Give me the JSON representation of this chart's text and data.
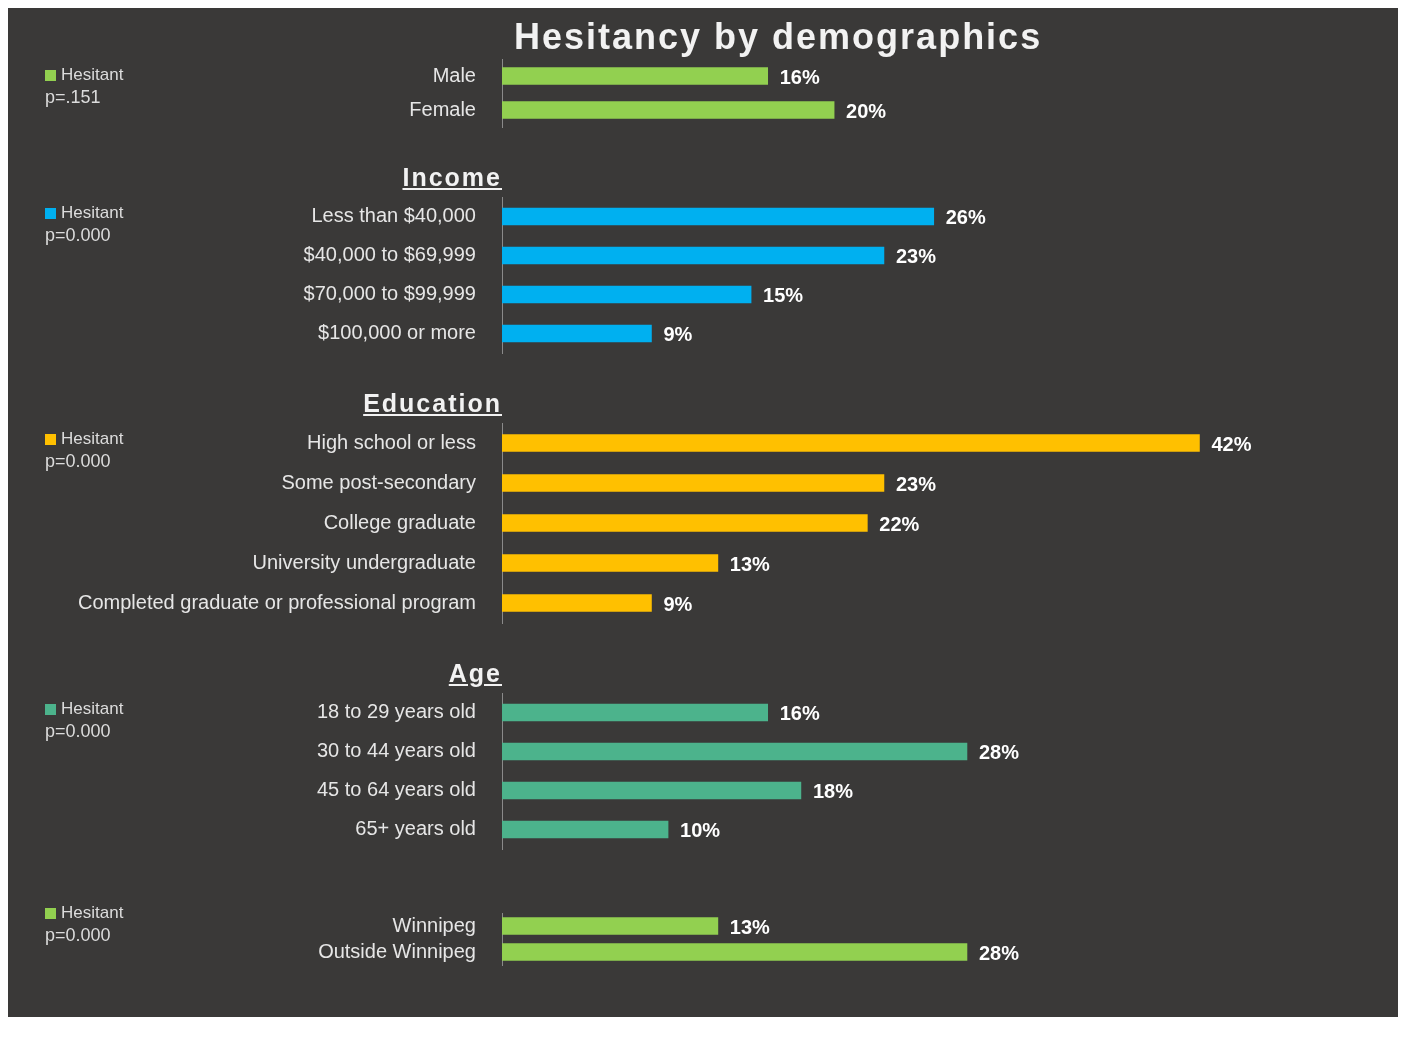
{
  "chart_data": [
    {
      "type": "bar",
      "orientation": "horizontal",
      "title": "Hesitancy by demographics",
      "categories": [
        "Male",
        "Female"
      ],
      "series": [
        {
          "name": "Hesitant",
          "color": "#92d050",
          "values": [
            16,
            20
          ],
          "value_labels": [
            "16%",
            "20%"
          ]
        }
      ],
      "legend": "top left",
      "tick_labels": "y",
      "grid": false,
      "annotations": [
        "p=.151"
      ]
    },
    {
      "type": "bar",
      "orientation": "horizontal",
      "title": "Income",
      "categories": [
        "Less than $40,000",
        "$40,000 to $69,999",
        "$70,000 to $99,999",
        "$100,000 or more"
      ],
      "series": [
        {
          "name": "Hesitant",
          "color": "#00b0f0",
          "values": [
            26,
            23,
            15,
            9
          ],
          "value_labels": [
            "26%",
            "23%",
            "15%",
            "9%"
          ]
        }
      ],
      "legend": "top left",
      "tick_labels": "y",
      "grid": false,
      "annotations": [
        "p=0.000"
      ]
    },
    {
      "type": "bar",
      "orientation": "horizontal",
      "title": "Education",
      "categories": [
        "High school or less",
        "Some post-secondary",
        "College graduate",
        "University undergraduate",
        "Completed graduate or professional program"
      ],
      "series": [
        {
          "name": "Hesitant",
          "color": "#ffc000",
          "values": [
            42,
            23,
            22,
            13,
            9
          ],
          "value_labels": [
            "42%",
            "23%",
            "22%",
            "13%",
            "9%"
          ]
        }
      ],
      "legend": "top left",
      "tick_labels": "y",
      "grid": false,
      "annotations": [
        "p=0.000"
      ]
    },
    {
      "type": "bar",
      "orientation": "horizontal",
      "title": "Age",
      "categories": [
        "18 to 29 years old",
        "30 to 44 years old",
        "45 to 64 years old",
        "65+ years old"
      ],
      "series": [
        {
          "name": "Hesitant",
          "color": "#4cb38c",
          "values": [
            16,
            28,
            18,
            10
          ],
          "value_labels": [
            "16%",
            "28%",
            "18%",
            "10%"
          ]
        }
      ],
      "legend": "top left",
      "tick_labels": "y",
      "grid": false,
      "annotations": [
        "p=0.000"
      ]
    },
    {
      "type": "bar",
      "orientation": "horizontal",
      "categories": [
        "Winnipeg",
        "Outside Winnipeg"
      ],
      "series": [
        {
          "name": "Hesitant",
          "color": "#92d050",
          "values": [
            13,
            28
          ],
          "value_labels": [
            "13%",
            "28%"
          ]
        }
      ],
      "legend": "top left",
      "tick_labels": "y",
      "grid": false,
      "annotations": [
        "p=0.000"
      ]
    }
  ]
}
